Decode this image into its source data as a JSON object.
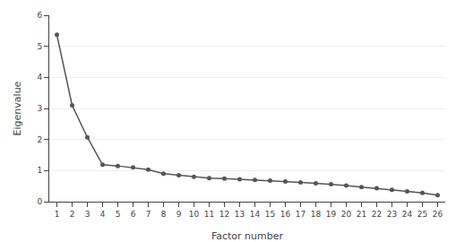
{
  "chart_data": {
    "type": "line",
    "x": [
      1,
      2,
      3,
      4,
      5,
      6,
      7,
      8,
      9,
      10,
      11,
      12,
      13,
      14,
      15,
      16,
      17,
      18,
      19,
      20,
      21,
      22,
      23,
      24,
      25,
      26
    ],
    "values": [
      5.37,
      3.1,
      2.07,
      1.19,
      1.15,
      1.1,
      1.03,
      0.9,
      0.85,
      0.8,
      0.76,
      0.74,
      0.72,
      0.7,
      0.68,
      0.65,
      0.62,
      0.59,
      0.56,
      0.52,
      0.47,
      0.43,
      0.38,
      0.33,
      0.28,
      0.21
    ],
    "xlabel": "Factor number",
    "ylabel": "Eigenvalue",
    "xlim": [
      0.5,
      26.5
    ],
    "ylim": [
      0,
      6
    ],
    "xticks": [
      1,
      2,
      3,
      4,
      5,
      6,
      7,
      8,
      9,
      10,
      11,
      12,
      13,
      14,
      15,
      16,
      17,
      18,
      19,
      20,
      21,
      22,
      23,
      24,
      25,
      26
    ],
    "yticks": [
      0,
      1,
      2,
      3,
      4,
      5,
      6
    ],
    "color": "#555555",
    "marker": "circle",
    "grid": "y"
  }
}
